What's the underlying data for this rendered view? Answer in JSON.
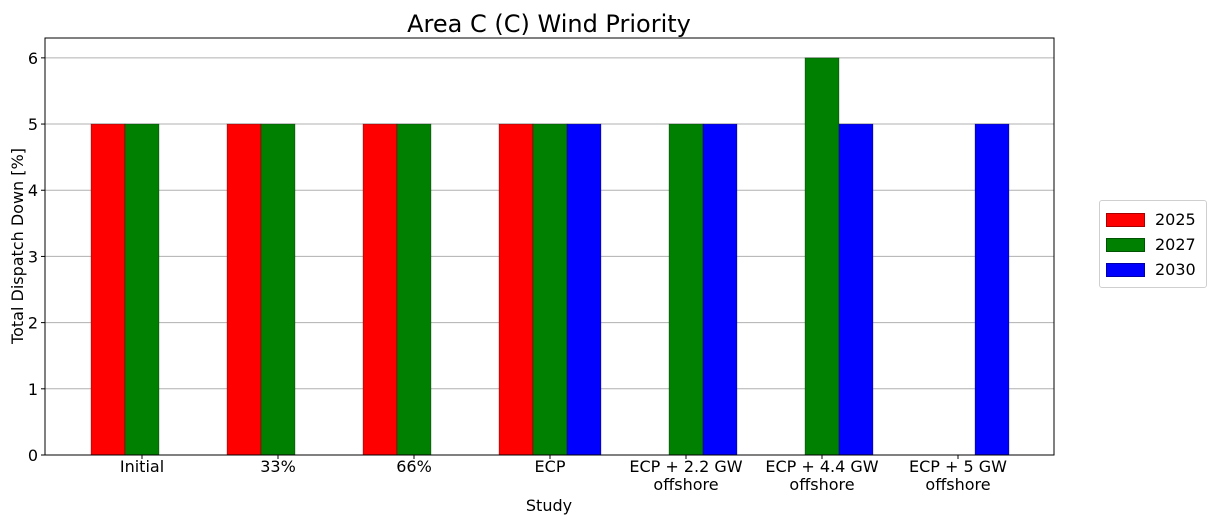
{
  "chart_data": {
    "type": "bar",
    "title": "Area C (C) Wind Priority",
    "xlabel": "Study",
    "ylabel": "Total Dispatch Down [%]",
    "categories": [
      [
        "Initial"
      ],
      [
        "33%"
      ],
      [
        "66%"
      ],
      [
        "ECP"
      ],
      [
        "ECP + 2.2 GW",
        "offshore"
      ],
      [
        "ECP + 4.4 GW",
        "offshore"
      ],
      [
        "ECP + 5 GW",
        "offshore"
      ]
    ],
    "series": [
      {
        "name": "2025",
        "color": "#ff0000",
        "values": [
          5,
          5,
          5,
          5,
          null,
          null,
          null
        ]
      },
      {
        "name": "2027",
        "color": "#008000",
        "values": [
          5,
          5,
          5,
          5,
          5,
          6,
          null
        ]
      },
      {
        "name": "2030",
        "color": "#0000ff",
        "values": [
          null,
          null,
          null,
          5,
          5,
          5,
          5
        ]
      }
    ],
    "ylim": [
      0,
      6.3
    ],
    "yticks": [
      0,
      1,
      2,
      3,
      4,
      5,
      6
    ],
    "grid": true,
    "legend_position": "right"
  }
}
